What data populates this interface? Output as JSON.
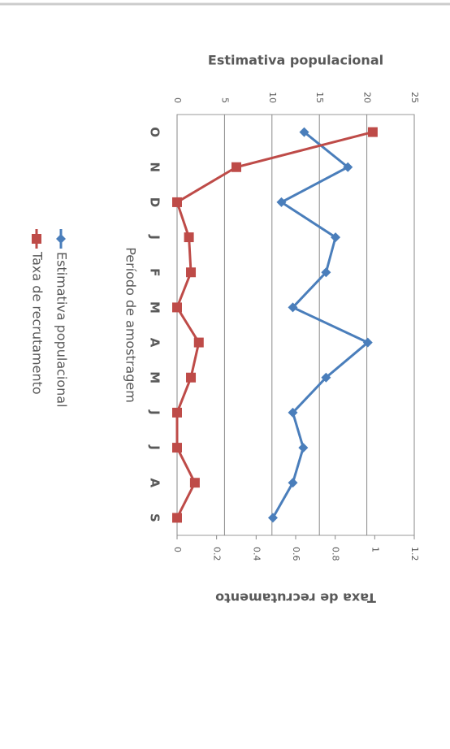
{
  "chart_data": {
    "type": "line",
    "y_label": "Estimativa populacional",
    "y2_label": "Taxa de recrutamento",
    "x_label": "Período de amostragem",
    "categories": [
      "O",
      "N",
      "D",
      "J",
      "F",
      "M",
      "A",
      "M",
      "J",
      "J",
      "A",
      "S"
    ],
    "series": [
      {
        "name": "Estimativa populacional",
        "color": "#4a7ebb",
        "marker": "diamond",
        "values": [
          13.4,
          18.0,
          11.0,
          16.7,
          15.7,
          12.2,
          20.1,
          15.7,
          12.2,
          13.3,
          12.2,
          10.1
        ]
      },
      {
        "name": "Taxa de recrutamento",
        "color": "#be4b48",
        "marker": "square",
        "axis": "y2",
        "values": [
          0.99,
          0.3,
          0,
          0.06,
          0.07,
          0,
          0.11,
          0.07,
          0,
          0,
          0.09,
          0
        ]
      }
    ],
    "ylim": [
      0,
      25
    ],
    "yticks": [
      0,
      5,
      10,
      15,
      20,
      25
    ],
    "y2lim": [
      0,
      1.2
    ],
    "y2ticks": [
      0,
      0.2,
      0.4,
      0.6,
      0.8,
      1,
      1.2
    ],
    "grid": true
  }
}
